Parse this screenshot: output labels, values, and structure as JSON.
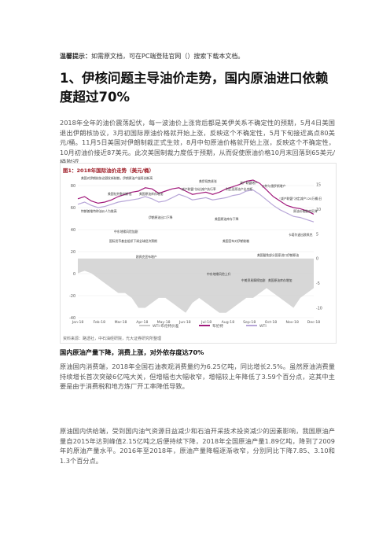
{
  "tip": {
    "label": "温馨提示：",
    "text": "如需原文档，可在PC端登陆官网（）搜索下载本文档。"
  },
  "title": "1、伊核问题主导油价走势，国内原油进口依赖度超过70%",
  "intro": "2018年全年的油价震荡起伏，每一波油价上涨背后都是美伊关系不确定性的预期，5月4日美国退出伊朗核协议，3月初国际原油价格就开始上涨，反映这个不确定性，5月下旬接近高点80美元/桶。11月5日美国对伊朗制裁正式生效，8月中旬原油价格就开始上涨，反映这个不确定性，10月初油价接近87美元。此次美国制裁力度低于预期，从而促使原油价格10月末回落到65美元/桶附近。",
  "chart_title": "图1：2018年国际油价走势（美元/桶）",
  "chart_source": "资料来源：路透社，中石油经研院，光大证券研究所整理",
  "subhead": "国内原油产量下降，消费上涨，对外依存度达70%",
  "para2": "原油国内消费端，2018年全国石油表观消费量约为6.25亿吨，同比增长2.5%。虽然原油消费量持续增长首次突破6亿吨大关，但增幅也大幅收窄，增幅较上年降低了3.59个百分点，这其中主要是由于消费税和地方炼厂开工率降低导致。",
  "para3": "原油国内供给端，受到国内油气资源日益减少和石油开采技术投资减少的因素影响，我国原油产量自2015年达到峰值2.15亿吨之后便持续下降，2018年全国原油产量1.89亿吨，降到了2009年的原油产量水平。2016年至2018年，原油产量降幅逐渐收窄，分别同比下降7.85、3.10和1.3个百分点。",
  "chart_data": {
    "type": "line",
    "title": "图1：2018年国际油价走势（美元/桶）",
    "x_ticks": [
      "Jan-18",
      "Feb-18",
      "Mar-18",
      "Apr-18",
      "May-18",
      "Jun-18",
      "Jul-18",
      "Aug-18",
      "Sep-18",
      "Oct-18",
      "Nov-18",
      "Dec-18"
    ],
    "y_left_ticks": [
      80,
      60,
      40,
      20,
      0,
      -20,
      -40
    ],
    "y_left_range": [
      -40,
      90
    ],
    "y_right_ticks": [
      15,
      10,
      5,
      0,
      -5,
      -10
    ],
    "y_right_range": [
      -12,
      17
    ],
    "series": [
      {
        "name": "WTI-布伦特价差",
        "color": "#c9c9c9",
        "axis": "right",
        "values": [
          -3,
          -2.5,
          -3,
          -4,
          -5,
          -6,
          -7,
          -7,
          -8,
          -10,
          -10,
          -9,
          -8,
          -8,
          -9,
          -10,
          -11,
          -9,
          -8,
          -9,
          -10,
          -11,
          -11,
          -10,
          -9,
          -8,
          -8,
          -7,
          -6,
          -7,
          -8,
          -9,
          -10,
          -8,
          -7,
          -6
        ]
      },
      {
        "name": "布伦特",
        "color": "#a11a7c",
        "axis": "left",
        "values": [
          68,
          70,
          66,
          64,
          65,
          67,
          70,
          72,
          74,
          75,
          78,
          77,
          73,
          75,
          77,
          78,
          75,
          72,
          73,
          74,
          72,
          74,
          77,
          79,
          81,
          84,
          85,
          82,
          76,
          70,
          66,
          62,
          60,
          59,
          57,
          54
        ]
      },
      {
        "name": "WTI",
        "color": "#b7a6d8",
        "axis": "left",
        "values": [
          63,
          65,
          62,
          60,
          61,
          63,
          65,
          66,
          67,
          68,
          70,
          68,
          65,
          66,
          69,
          72,
          70,
          67,
          68,
          69,
          67,
          68,
          69,
          71,
          72,
          75,
          76,
          72,
          67,
          62,
          58,
          55,
          52,
          51,
          49,
          47
        ]
      }
    ],
    "annotations": [
      "美国对伊朗核协议颁发新制裁，伊朗原油产量再创新高",
      "特朗普推特称油价人为推高",
      "美国钻井数创新低",
      "中东地缘风险加剧",
      "美国原油库存增加",
      "国际货币基金组织下调全球经济预期",
      "伊朗原油出口下降",
      "欧佩克宣布增产",
      "“减产联盟”协议减产执行率",
      "美伊局势紧张",
      "利比亚原油产出中断",
      "美国原油库存下降",
      "中东地缘风险上升",
      "美国宣布对伊朗制裁",
      "减产联盟增产",
      "沙特与俄罗斯增产",
      "美国豁免部分国家进口伊朗原油",
      "“减产联盟”决定减产120万桶/日",
      "原油价格触底反弹",
      "卡塔尔退出欧佩克",
      "美国原油库存增加",
      "中美贸易摩擦加剧"
    ]
  }
}
